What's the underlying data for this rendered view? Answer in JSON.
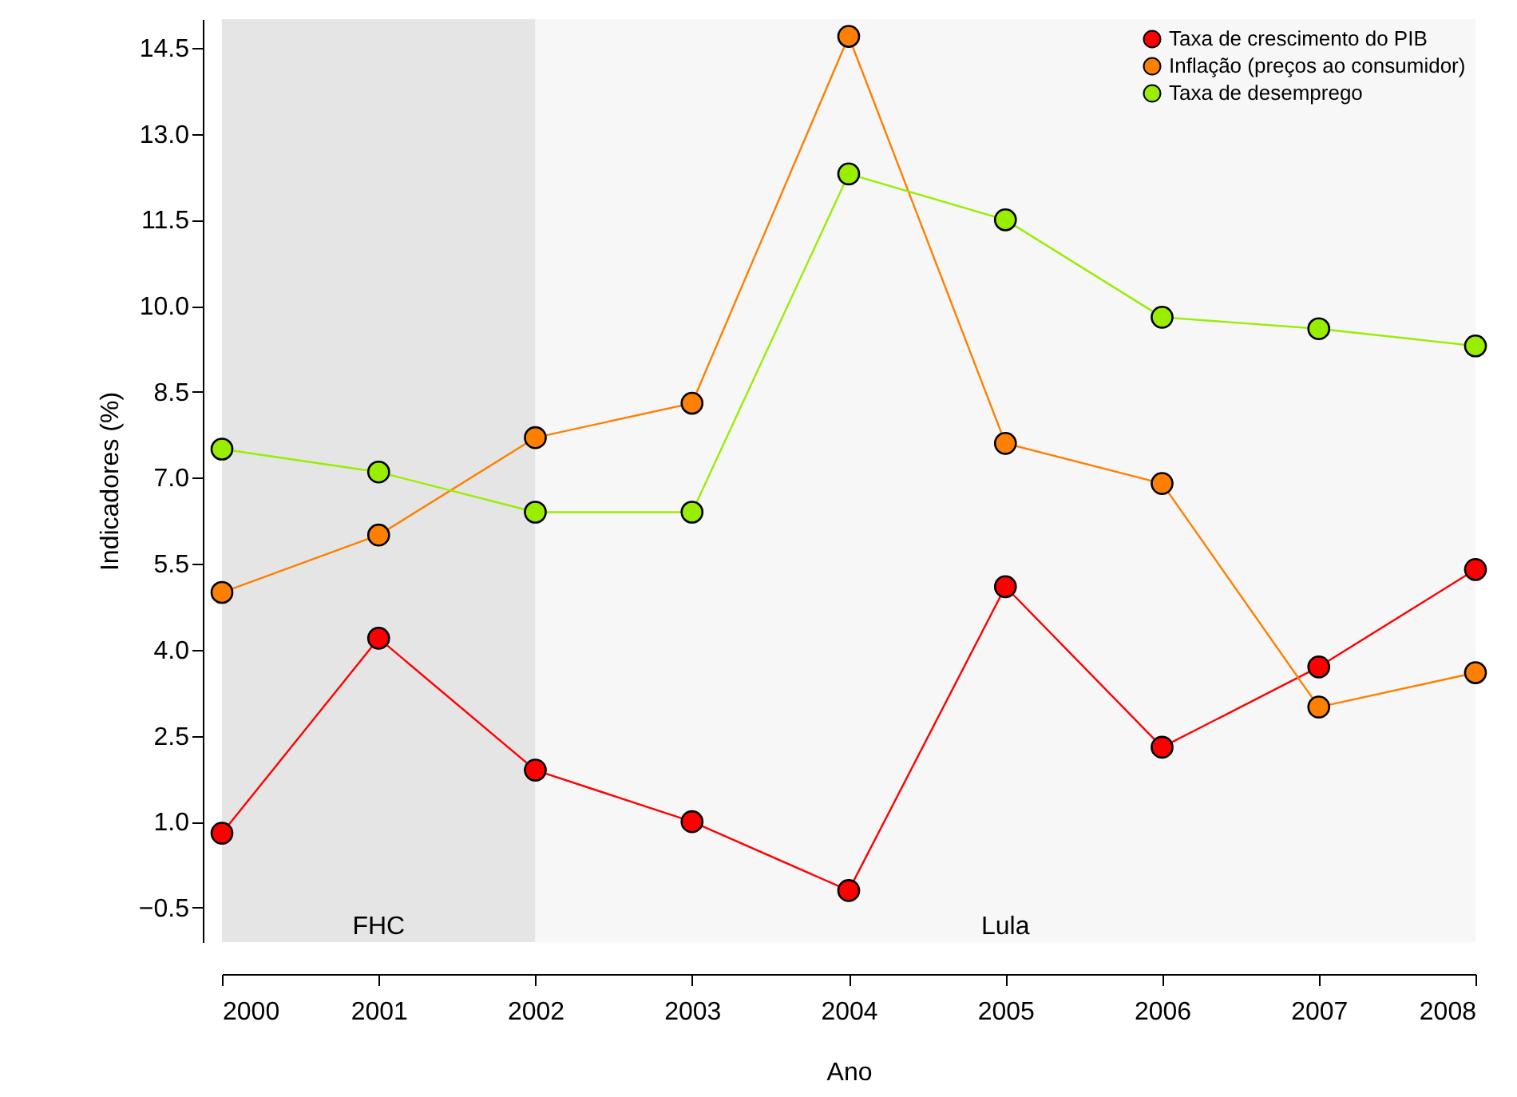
{
  "chart_data": {
    "type": "line",
    "xlabel": "Ano",
    "ylabel": "Indicadores (%)",
    "x": [
      2000,
      2001,
      2002,
      2003,
      2004,
      2005,
      2006,
      2007,
      2008
    ],
    "series": [
      {
        "name": "Taxa de crescimento do PIB",
        "color": "#ff0000",
        "values": [
          0.8,
          4.2,
          1.9,
          1.0,
          -0.2,
          5.1,
          2.3,
          3.7,
          5.4
        ]
      },
      {
        "name": "Inflação (preços ao consumidor)",
        "color": "#ff7f00",
        "values": [
          5.0,
          6.0,
          7.7,
          8.3,
          14.7,
          7.6,
          6.9,
          3.0,
          3.6
        ]
      },
      {
        "name": "Taxa de desemprego",
        "color": "#99ee00",
        "values": [
          7.5,
          7.1,
          6.4,
          6.4,
          12.3,
          11.5,
          9.8,
          9.6,
          9.3
        ]
      }
    ],
    "xlim": [
      2000,
      2008
    ],
    "xticks": [
      2000,
      2001,
      2002,
      2003,
      2004,
      2005,
      2006,
      2007,
      2008
    ],
    "ylim": [
      -1.1,
      15.0
    ],
    "yticks": [
      -0.5,
      {
        "value": 1,
        "label": "1.0"
      },
      2.5,
      {
        "value": 4,
        "label": "4.0"
      },
      5.5,
      {
        "value": 7,
        "label": "7.0"
      },
      8.5,
      {
        "value": 10,
        "label": "10.0"
      },
      11.5,
      {
        "value": 13,
        "label": "13.0"
      },
      14.5
    ],
    "bands": [
      {
        "axis": "x",
        "from": 2000,
        "to": 2002,
        "label": "FHC",
        "color": "#e5e5e5"
      },
      {
        "axis": "x",
        "from": 2002,
        "to": 2008,
        "label": "Lula",
        "color": "#f7f7f7"
      }
    ],
    "grid": false,
    "legend": "top right",
    "marker": "circle",
    "line_style": "solid"
  }
}
